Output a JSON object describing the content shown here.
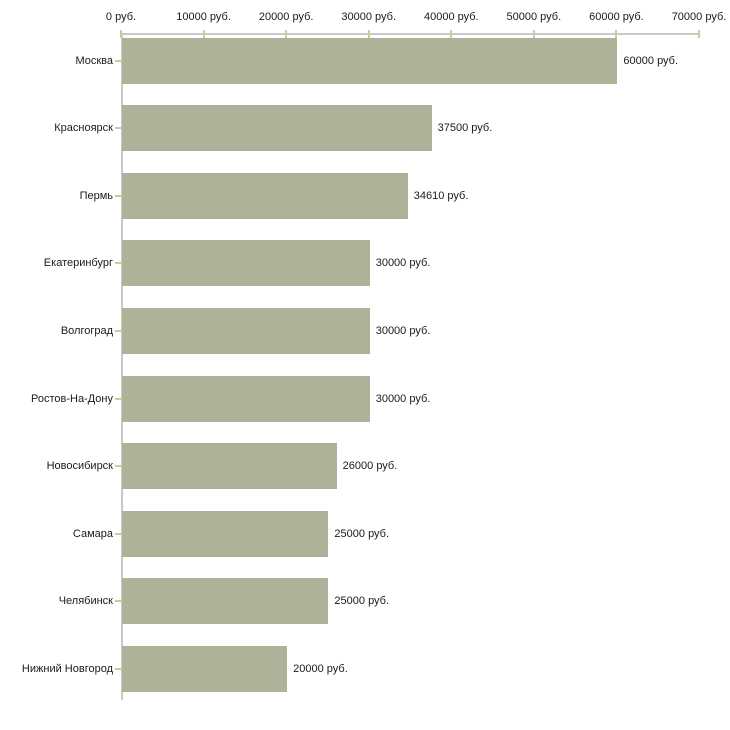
{
  "chart_data": {
    "type": "bar",
    "orientation": "horizontal",
    "title": "",
    "xlabel": "",
    "ylabel": "",
    "unit_suffix": " руб.",
    "xlim": [
      0,
      70000
    ],
    "x_tick_values": [
      0,
      10000,
      20000,
      30000,
      40000,
      50000,
      60000,
      70000
    ],
    "x_tick_labels": [
      "0 руб.",
      "10000 руб.",
      "20000 руб.",
      "30000 руб.",
      "40000 руб.",
      "50000 руб.",
      "60000 руб.",
      "70000 руб."
    ],
    "categories": [
      "Москва",
      "Красноярск",
      "Пермь",
      "Екатеринбург",
      "Волгоград",
      "Ростов-На-Дону",
      "Новосибирск",
      "Самара",
      "Челябинск",
      "Нижний Новгород"
    ],
    "values": [
      60000,
      37500,
      34610,
      30000,
      30000,
      30000,
      26000,
      25000,
      25000,
      20000
    ],
    "value_labels": [
      "60000 руб.",
      "37500 руб.",
      "34610 руб.",
      "30000 руб.",
      "30000 руб.",
      "30000 руб.",
      "26000 руб.",
      "25000 руб.",
      "25000 руб.",
      "20000 руб."
    ],
    "grid": false,
    "legend": false,
    "axis_position": "top",
    "colors": {
      "bar": "#acb399",
      "axis_line": "#c9c9c9",
      "tick": "#cccc99",
      "text": "#1a1a1a",
      "background": "#ffffff"
    }
  }
}
